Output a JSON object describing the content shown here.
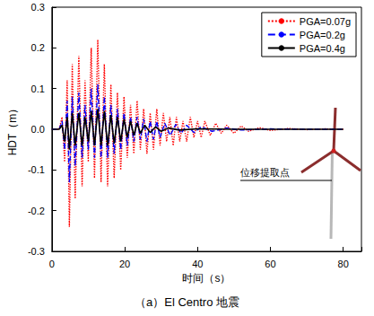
{
  "chart_data": {
    "type": "line",
    "title": "（a）El Centro 地震",
    "x_label": "时间（s）",
    "y_label": "HDT（m）",
    "xlim": [
      0,
      85
    ],
    "xticks": [
      0,
      20,
      40,
      60,
      80
    ],
    "ylim": [
      -0.3,
      0.3
    ],
    "yticks": [
      -0.3,
      -0.2,
      -0.1,
      {
        "value": 0,
        "label": "0.0"
      },
      0.1,
      0.2,
      0.3
    ],
    "grid": false,
    "legend": "upper right",
    "annotations": [
      "位移提取点"
    ],
    "series": [
      {
        "name": "PGA=0.07g",
        "color": "#ff0000",
        "line_style": "dotted",
        "x": [
          0,
          2,
          2.8,
          3.5,
          4.2,
          4.8,
          5.6,
          6.4,
          7.4,
          8.3,
          9.1,
          10.0,
          10.8,
          11.7,
          12.6,
          13.5,
          14.4,
          15.3,
          16.2,
          17.1,
          18.0,
          18.9,
          19.8,
          20.7,
          21.6,
          22.5,
          23.4,
          24.3,
          25.2,
          26.1,
          27.0,
          27.9,
          28.8,
          29.7,
          30.6,
          31.5,
          32.4,
          33.3,
          34.2,
          35.1,
          36,
          37,
          38,
          39,
          40,
          41,
          42,
          43.5,
          45,
          46.5,
          48,
          50,
          52,
          54,
          57,
          60,
          65,
          70,
          75,
          80
        ],
        "values": [
          0,
          0,
          0.03,
          -0.08,
          0.12,
          -0.24,
          0.16,
          -0.17,
          0.18,
          -0.14,
          0.12,
          -0.08,
          0.2,
          -0.12,
          0.22,
          -0.13,
          0.16,
          -0.14,
          0.11,
          -0.12,
          0.09,
          -0.1,
          0.08,
          -0.07,
          0.06,
          -0.06,
          0.07,
          -0.05,
          0.05,
          -0.06,
          0.04,
          -0.05,
          0.05,
          -0.04,
          0.04,
          -0.03,
          0.03,
          -0.04,
          0.03,
          -0.03,
          0.02,
          -0.03,
          0.03,
          -0.02,
          0.02,
          -0.02,
          0.02,
          -0.015,
          0.015,
          -0.01,
          0.01,
          -0.01,
          0.008,
          -0.005,
          0.004,
          -0.003,
          0.002,
          -0.001,
          0.001,
          0
        ]
      },
      {
        "name": "PGA=0.2g",
        "color": "#0000ff",
        "line_style": "dashed",
        "x": [
          0,
          2,
          2.8,
          3.5,
          4.2,
          4.8,
          5.6,
          6.4,
          7.4,
          8.3,
          9.1,
          10.0,
          10.8,
          11.7,
          12.6,
          13.5,
          14.4,
          15.3,
          16.2,
          17.1,
          18.0,
          18.9,
          19.8,
          20.7,
          21.6,
          22.5,
          23.4,
          24.3,
          25.2,
          26.1,
          27.0,
          27.9,
          28.8,
          29.7,
          31,
          32.5,
          34,
          35.5,
          37,
          39,
          41,
          44,
          48,
          52,
          60,
          70,
          80
        ],
        "values": [
          0,
          0,
          0.02,
          -0.05,
          0.07,
          -0.13,
          0.08,
          -0.09,
          0.09,
          -0.07,
          0.06,
          -0.05,
          0.1,
          -0.07,
          0.11,
          -0.07,
          0.08,
          -0.07,
          0.06,
          -0.06,
          0.05,
          -0.05,
          0.04,
          -0.04,
          0.03,
          -0.03,
          0.03,
          -0.025,
          0.025,
          -0.03,
          0.02,
          -0.025,
          0.02,
          -0.02,
          0.015,
          -0.015,
          0.012,
          -0.01,
          0.01,
          -0.008,
          0.006,
          -0.005,
          0.003,
          -0.002,
          0.001,
          0,
          0
        ]
      },
      {
        "name": "PGA=0.4g",
        "color": "#000000",
        "line_style": "solid",
        "x": [
          0,
          2,
          2.8,
          3.5,
          4.2,
          4.8,
          5.6,
          6.4,
          7.4,
          8.3,
          9.1,
          10.0,
          10.8,
          11.7,
          12.6,
          13.5,
          14.4,
          15.3,
          16.2,
          17.1,
          18.0,
          18.9,
          19.8,
          20.7,
          21.6,
          22.5,
          23.4,
          24.3,
          25.5,
          27,
          28.5,
          30,
          32,
          35,
          40,
          50,
          80
        ],
        "values": [
          0,
          0,
          0.01,
          -0.03,
          0.03,
          -0.05,
          0.04,
          -0.04,
          0.04,
          -0.04,
          0.03,
          -0.03,
          0.045,
          -0.04,
          0.05,
          -0.04,
          0.045,
          -0.04,
          0.035,
          -0.035,
          0.03,
          -0.03,
          0.025,
          -0.02,
          0.02,
          -0.015,
          0.015,
          -0.01,
          0.01,
          -0.008,
          0.006,
          -0.005,
          0.003,
          -0.002,
          0.001,
          0,
          0
        ]
      }
    ]
  }
}
